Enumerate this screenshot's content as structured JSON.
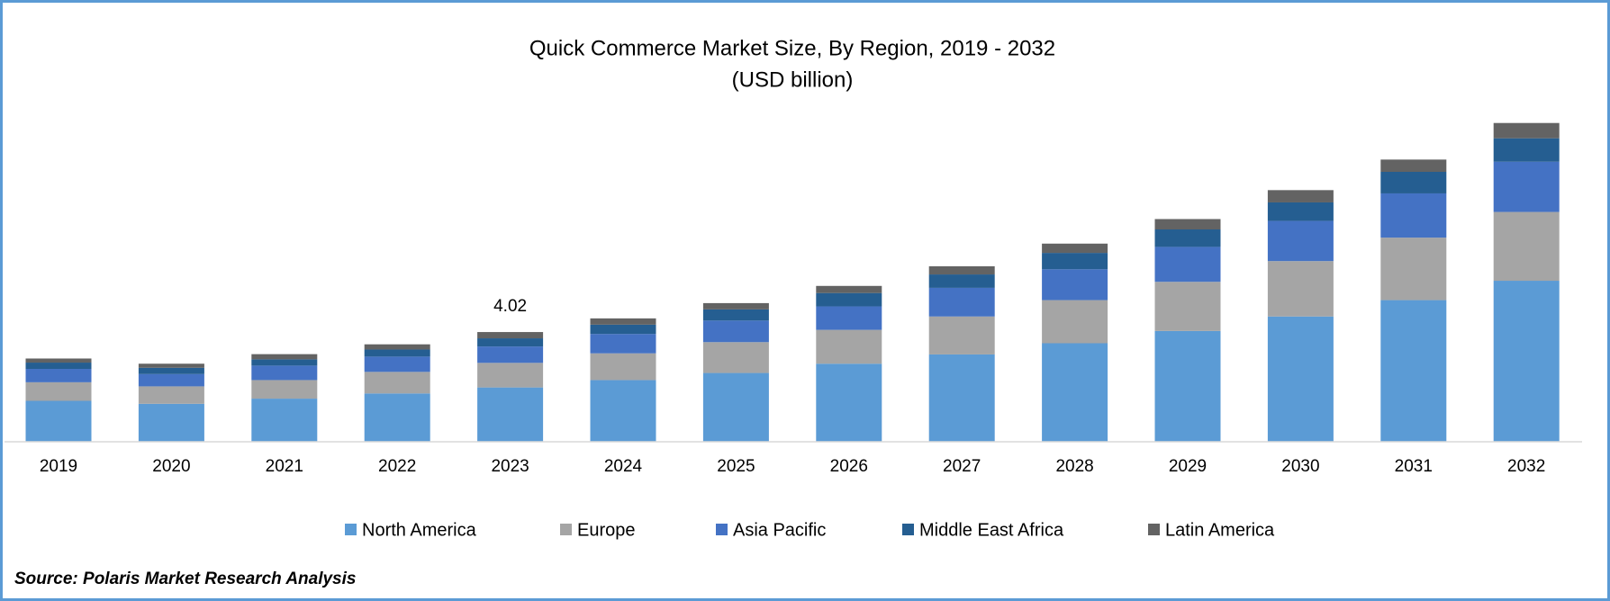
{
  "chart_data": {
    "type": "stacked_bar",
    "title": "Quick Commerce Market Size, By Region, 2019 - 2032",
    "subtitle": "(USD billion)",
    "source": "Source: Polaris Market Research Analysis",
    "categories": [
      "2019",
      "2020",
      "2021",
      "2022",
      "2023",
      "2024",
      "2025",
      "2026",
      "2027",
      "2028",
      "2029",
      "2030",
      "2031",
      "2032"
    ],
    "series": [
      {
        "name": "North America",
        "color": "#5b9bd5",
        "values": [
          1.5,
          1.39,
          1.58,
          1.77,
          1.99,
          2.26,
          2.52,
          2.86,
          3.2,
          3.61,
          4.06,
          4.59,
          5.19,
          5.9
        ]
      },
      {
        "name": "Europe",
        "color": "#a5a5a5",
        "values": [
          0.68,
          0.64,
          0.68,
          0.79,
          0.9,
          0.98,
          1.13,
          1.24,
          1.39,
          1.58,
          1.8,
          2.03,
          2.29,
          2.52
        ]
      },
      {
        "name": "Asia Pacific",
        "color": "#4472c4",
        "values": [
          0.49,
          0.45,
          0.53,
          0.56,
          0.6,
          0.71,
          0.79,
          0.86,
          1.05,
          1.13,
          1.28,
          1.47,
          1.62,
          1.84
        ]
      },
      {
        "name": "Middle East Africa",
        "color": "#255e91",
        "values": [
          0.23,
          0.23,
          0.23,
          0.26,
          0.3,
          0.34,
          0.41,
          0.49,
          0.49,
          0.6,
          0.64,
          0.68,
          0.79,
          0.86
        ]
      },
      {
        "name": "Latin America",
        "color": "#636363",
        "values": [
          0.15,
          0.15,
          0.19,
          0.19,
          0.23,
          0.23,
          0.23,
          0.26,
          0.3,
          0.34,
          0.38,
          0.45,
          0.45,
          0.56
        ]
      }
    ],
    "annotations": [
      {
        "x": "2023",
        "text": "4.02"
      }
    ],
    "ylim": [
      0,
      12
    ]
  }
}
